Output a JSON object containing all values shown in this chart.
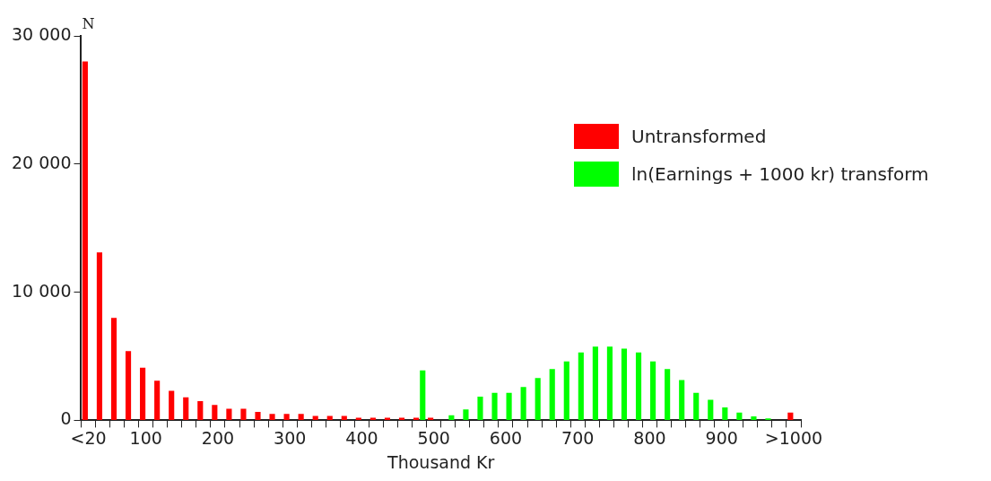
{
  "chart_data": {
    "type": "bar",
    "xlabel": "Thousand Kr",
    "ylabel": "N",
    "categories": [
      "<20",
      null,
      null,
      null,
      "100",
      null,
      null,
      null,
      null,
      "200",
      null,
      null,
      null,
      null,
      "300",
      null,
      null,
      null,
      null,
      "400",
      null,
      null,
      null,
      null,
      "500",
      null,
      null,
      null,
      null,
      "600",
      null,
      null,
      null,
      null,
      "700",
      null,
      null,
      null,
      null,
      "800",
      null,
      null,
      null,
      null,
      "900",
      null,
      null,
      null,
      null,
      ">1000"
    ],
    "series": [
      {
        "name": "Untransformed",
        "color": "#ff0000",
        "values": [
          28000,
          13100,
          8000,
          5400,
          4100,
          3100,
          2300,
          1800,
          1500,
          1200,
          900,
          900,
          650,
          500,
          500,
          500,
          350,
          350,
          350,
          200,
          200,
          200,
          200,
          200,
          200,
          null,
          null,
          null,
          null,
          null,
          null,
          null,
          null,
          null,
          null,
          null,
          null,
          null,
          null,
          null,
          null,
          null,
          null,
          null,
          null,
          null,
          null,
          null,
          null,
          600
        ]
      },
      {
        "name": "ln(Earnings + 1000 kr) transform",
        "color": "#00ff00",
        "values": [
          null,
          null,
          null,
          null,
          null,
          null,
          null,
          null,
          null,
          null,
          null,
          null,
          null,
          null,
          null,
          null,
          null,
          null,
          null,
          null,
          null,
          null,
          null,
          3900,
          null,
          400,
          850,
          1850,
          2150,
          2150,
          2600,
          3300,
          4000,
          4600,
          5300,
          5750,
          5750,
          5600,
          5300,
          4600,
          4000,
          3150,
          2150,
          1600,
          1000,
          600,
          300,
          150,
          null,
          null
        ]
      }
    ],
    "ylim": [
      0,
      30000
    ],
    "yticks": [
      {
        "value": 0,
        "label": "0"
      },
      {
        "value": 10000,
        "label": "10 000"
      },
      {
        "value": 20000,
        "label": "20 000"
      },
      {
        "value": 30000,
        "label": "30 000"
      }
    ],
    "grid": false,
    "legend": "top right"
  }
}
